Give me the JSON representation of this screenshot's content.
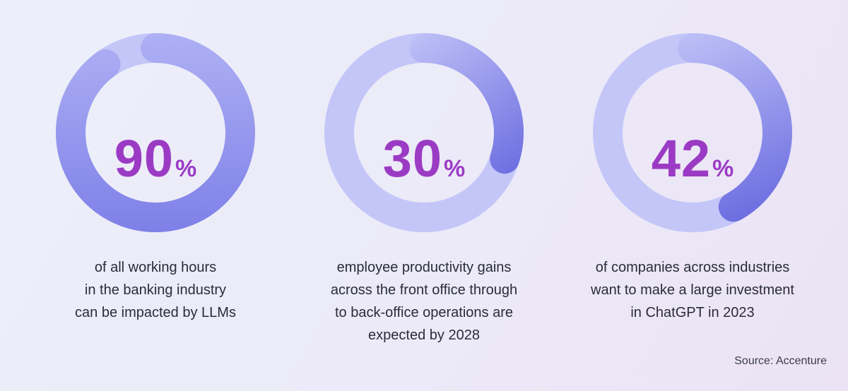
{
  "chart_data": [
    {
      "type": "donut",
      "value": 90,
      "value_label": "90",
      "unit": "%",
      "caption_lines": [
        "of all working hours",
        "in the banking industry",
        "can be impacted by LLMs"
      ]
    },
    {
      "type": "donut",
      "value": 30,
      "value_label": "30",
      "unit": "%",
      "caption_lines": [
        "employee productivity gains",
        "across the front office through",
        "to back-office operations are",
        "expected by 2028"
      ]
    },
    {
      "type": "donut",
      "value": 42,
      "value_label": "42",
      "unit": "%",
      "caption_lines": [
        "of companies across industries",
        "want to make a large investment",
        "in ChatGPT in 2023"
      ]
    }
  ],
  "source": "Source: Accenture",
  "colors": {
    "track": "#c4c6f8",
    "arc_start": "#aeb0f4",
    "arc_end": "#6b6ce0",
    "value_text": "#9b3bc4",
    "caption_text": "#2a2c3a"
  }
}
